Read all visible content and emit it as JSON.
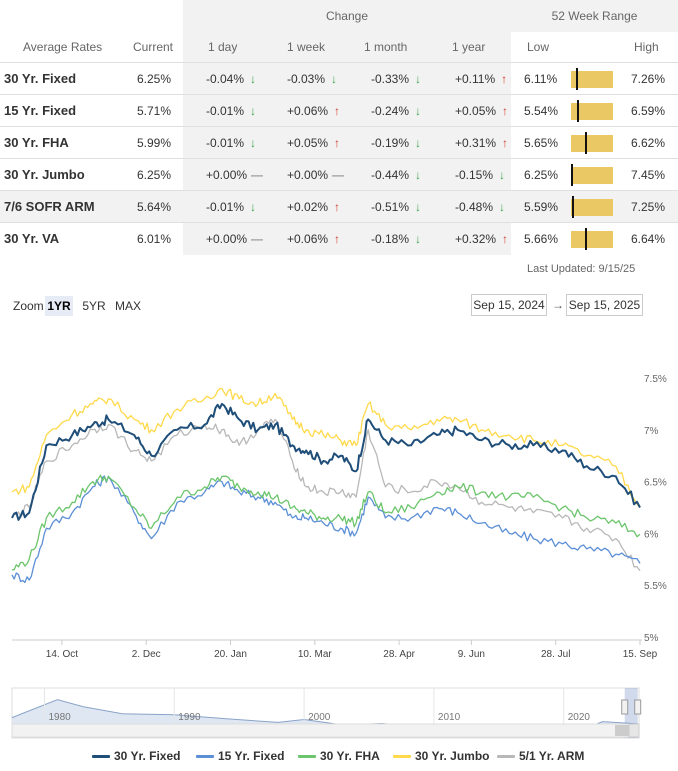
{
  "table": {
    "group_headers": {
      "change": "Change",
      "range": "52 Week Range"
    },
    "columns": {
      "name": "Average Rates",
      "current": "Current",
      "d1": "1 day",
      "w1": "1 week",
      "m1": "1 month",
      "y1": "1 year",
      "low": "Low",
      "high": "High"
    },
    "rows": [
      {
        "name": "30 Yr. Fixed",
        "current": "6.25%",
        "d1": "-0.04%",
        "d1_dir": "down",
        "w1": "-0.03%",
        "w1_dir": "down",
        "m1": "-0.33%",
        "m1_dir": "down",
        "y1": "+0.11%",
        "y1_dir": "up",
        "low": "6.11%",
        "high": "7.26%",
        "range_pos": 0.12
      },
      {
        "name": "15 Yr. Fixed",
        "current": "5.71%",
        "d1": "-0.01%",
        "d1_dir": "down",
        "w1": "+0.06%",
        "w1_dir": "up",
        "m1": "-0.24%",
        "m1_dir": "down",
        "y1": "+0.05%",
        "y1_dir": "up",
        "low": "5.54%",
        "high": "6.59%",
        "range_pos": 0.16
      },
      {
        "name": "30 Yr. FHA",
        "current": "5.99%",
        "d1": "-0.01%",
        "d1_dir": "down",
        "w1": "+0.05%",
        "w1_dir": "up",
        "m1": "-0.19%",
        "m1_dir": "down",
        "y1": "+0.31%",
        "y1_dir": "up",
        "low": "5.65%",
        "high": "6.62%",
        "range_pos": 0.35
      },
      {
        "name": "30 Yr. Jumbo",
        "current": "6.25%",
        "d1": "+0.00%",
        "d1_dir": "flat",
        "w1": "+0.00%",
        "w1_dir": "flat",
        "m1": "-0.44%",
        "m1_dir": "down",
        "y1": "-0.15%",
        "y1_dir": "down",
        "low": "6.25%",
        "high": "7.45%",
        "range_pos": 0.0
      },
      {
        "name": "7/6 SOFR ARM",
        "current": "5.64%",
        "d1": "-0.01%",
        "d1_dir": "down",
        "w1": "+0.02%",
        "w1_dir": "up",
        "m1": "-0.51%",
        "m1_dir": "down",
        "y1": "-0.48%",
        "y1_dir": "down",
        "low": "5.59%",
        "high": "7.25%",
        "range_pos": 0.03,
        "highlight": true
      },
      {
        "name": "30 Yr. VA",
        "current": "6.01%",
        "d1": "+0.00%",
        "d1_dir": "flat",
        "w1": "+0.06%",
        "w1_dir": "up",
        "m1": "-0.18%",
        "m1_dir": "down",
        "y1": "+0.32%",
        "y1_dir": "up",
        "low": "5.66%",
        "high": "6.64%",
        "range_pos": 0.36
      }
    ],
    "last_updated": "Last Updated: 9/15/25"
  },
  "controls": {
    "zoom_label": "Zoom",
    "zoom_buttons": [
      "1YR",
      "5YR",
      "MAX"
    ],
    "active_zoom": "1YR",
    "date_from": "Sep 15, 2024",
    "date_arrow": "→",
    "date_to": "Sep 15, 2025"
  },
  "icons": {
    "down": "arrow-down-icon",
    "up": "arrow-up-icon",
    "flat": "dash-icon"
  },
  "colors": {
    "down": "#3aa648",
    "up": "#d43b2e",
    "range_bar": "#eac864"
  },
  "chart_data": {
    "type": "line",
    "y_tick_labels": [
      "5%",
      "5.5%",
      "6%",
      "6.5%",
      "7%",
      "7.5%"
    ],
    "ylim": [
      5.0,
      7.5
    ],
    "x_tick_labels": [
      "14. Oct",
      "2. Dec",
      "20. Jan",
      "10. Mar",
      "28. Apr",
      "9. Jun",
      "28. Jul",
      "15. Sep"
    ],
    "x_tick_dates": [
      "2024-10-14",
      "2024-12-02",
      "2025-01-20",
      "2025-03-10",
      "2025-04-28",
      "2025-06-09",
      "2025-07-28",
      "2025-09-15"
    ],
    "x_range": [
      "2024-09-15",
      "2025-09-15"
    ],
    "grid": false,
    "legend_position": "bottom",
    "series": [
      {
        "name": "30 Yr. Fixed",
        "color": "#1f4e79",
        "points": [
          [
            "2024-09-15",
            6.15
          ],
          [
            "2024-09-25",
            6.2
          ],
          [
            "2024-10-05",
            6.85
          ],
          [
            "2024-10-20",
            6.95
          ],
          [
            "2024-11-01",
            7.05
          ],
          [
            "2024-11-10",
            7.1
          ],
          [
            "2024-11-25",
            6.95
          ],
          [
            "2024-12-05",
            6.75
          ],
          [
            "2024-12-20",
            7.0
          ],
          [
            "2025-01-05",
            7.05
          ],
          [
            "2025-01-15",
            7.25
          ],
          [
            "2025-01-25",
            7.1
          ],
          [
            "2025-02-05",
            7.0
          ],
          [
            "2025-02-15",
            7.05
          ],
          [
            "2025-02-25",
            6.85
          ],
          [
            "2025-03-05",
            6.8
          ],
          [
            "2025-03-15",
            6.7
          ],
          [
            "2025-03-25",
            6.75
          ],
          [
            "2025-04-03",
            6.6
          ],
          [
            "2025-04-10",
            7.1
          ],
          [
            "2025-04-20",
            6.9
          ],
          [
            "2025-05-05",
            6.85
          ],
          [
            "2025-05-20",
            6.95
          ],
          [
            "2025-06-01",
            7.0
          ],
          [
            "2025-06-15",
            6.9
          ],
          [
            "2025-07-01",
            6.85
          ],
          [
            "2025-07-15",
            6.85
          ],
          [
            "2025-08-01",
            6.8
          ],
          [
            "2025-08-15",
            6.65
          ],
          [
            "2025-09-01",
            6.55
          ],
          [
            "2025-09-15",
            6.25
          ]
        ]
      },
      {
        "name": "15 Yr. Fixed",
        "color": "#5b8fd6",
        "points": [
          [
            "2024-09-15",
            5.6
          ],
          [
            "2024-09-25",
            5.55
          ],
          [
            "2024-10-05",
            6.05
          ],
          [
            "2024-10-20",
            6.2
          ],
          [
            "2024-11-01",
            6.45
          ],
          [
            "2024-11-10",
            6.55
          ],
          [
            "2024-11-25",
            6.2
          ],
          [
            "2024-12-05",
            5.95
          ],
          [
            "2024-12-20",
            6.3
          ],
          [
            "2025-01-05",
            6.4
          ],
          [
            "2025-01-15",
            6.5
          ],
          [
            "2025-01-25",
            6.4
          ],
          [
            "2025-02-05",
            6.35
          ],
          [
            "2025-02-15",
            6.3
          ],
          [
            "2025-02-25",
            6.15
          ],
          [
            "2025-03-05",
            6.15
          ],
          [
            "2025-03-15",
            6.1
          ],
          [
            "2025-03-25",
            6.05
          ],
          [
            "2025-04-03",
            6.0
          ],
          [
            "2025-04-10",
            6.35
          ],
          [
            "2025-04-20",
            6.15
          ],
          [
            "2025-05-05",
            6.15
          ],
          [
            "2025-05-20",
            6.25
          ],
          [
            "2025-06-01",
            6.2
          ],
          [
            "2025-06-15",
            6.1
          ],
          [
            "2025-07-01",
            6.0
          ],
          [
            "2025-07-15",
            5.95
          ],
          [
            "2025-08-01",
            5.9
          ],
          [
            "2025-08-15",
            5.85
          ],
          [
            "2025-09-01",
            5.8
          ],
          [
            "2025-09-15",
            5.71
          ]
        ]
      },
      {
        "name": "30 Yr. FHA",
        "color": "#6cc56c",
        "points": [
          [
            "2024-09-15",
            5.65
          ],
          [
            "2024-09-25",
            5.75
          ],
          [
            "2024-10-05",
            6.15
          ],
          [
            "2024-10-20",
            6.3
          ],
          [
            "2024-11-01",
            6.5
          ],
          [
            "2024-11-10",
            6.55
          ],
          [
            "2024-11-25",
            6.25
          ],
          [
            "2024-12-05",
            6.05
          ],
          [
            "2024-12-20",
            6.35
          ],
          [
            "2025-01-05",
            6.45
          ],
          [
            "2025-01-15",
            6.55
          ],
          [
            "2025-01-25",
            6.45
          ],
          [
            "2025-02-05",
            6.4
          ],
          [
            "2025-02-15",
            6.35
          ],
          [
            "2025-02-25",
            6.25
          ],
          [
            "2025-03-05",
            6.2
          ],
          [
            "2025-03-15",
            6.15
          ],
          [
            "2025-03-25",
            6.15
          ],
          [
            "2025-04-03",
            6.1
          ],
          [
            "2025-04-10",
            6.4
          ],
          [
            "2025-04-20",
            6.2
          ],
          [
            "2025-05-05",
            6.25
          ],
          [
            "2025-05-20",
            6.4
          ],
          [
            "2025-06-01",
            6.45
          ],
          [
            "2025-06-15",
            6.4
          ],
          [
            "2025-07-01",
            6.35
          ],
          [
            "2025-07-15",
            6.35
          ],
          [
            "2025-08-01",
            6.25
          ],
          [
            "2025-08-15",
            6.15
          ],
          [
            "2025-09-01",
            6.1
          ],
          [
            "2025-09-15",
            5.99
          ]
        ]
      },
      {
        "name": "30 Yr. Jumbo",
        "color": "#ffd94a",
        "points": [
          [
            "2024-09-15",
            6.4
          ],
          [
            "2024-09-25",
            6.45
          ],
          [
            "2024-10-05",
            6.95
          ],
          [
            "2024-10-20",
            7.15
          ],
          [
            "2024-11-01",
            7.25
          ],
          [
            "2024-11-10",
            7.3
          ],
          [
            "2024-11-25",
            7.1
          ],
          [
            "2024-12-05",
            7.0
          ],
          [
            "2024-12-20",
            7.2
          ],
          [
            "2025-01-05",
            7.3
          ],
          [
            "2025-01-15",
            7.4
          ],
          [
            "2025-01-25",
            7.3
          ],
          [
            "2025-02-05",
            7.25
          ],
          [
            "2025-02-15",
            7.35
          ],
          [
            "2025-02-25",
            7.1
          ],
          [
            "2025-03-05",
            7.0
          ],
          [
            "2025-03-15",
            6.95
          ],
          [
            "2025-03-25",
            6.9
          ],
          [
            "2025-04-03",
            6.85
          ],
          [
            "2025-04-10",
            7.25
          ],
          [
            "2025-04-20",
            7.05
          ],
          [
            "2025-05-05",
            7.0
          ],
          [
            "2025-05-20",
            7.1
          ],
          [
            "2025-06-01",
            7.1
          ],
          [
            "2025-06-15",
            7.0
          ],
          [
            "2025-07-01",
            6.95
          ],
          [
            "2025-07-15",
            6.9
          ],
          [
            "2025-08-01",
            6.85
          ],
          [
            "2025-08-15",
            6.75
          ],
          [
            "2025-09-01",
            6.65
          ],
          [
            "2025-09-15",
            6.25
          ]
        ]
      },
      {
        "name": "5/1 Yr. ARM",
        "color": "#b8b8b8",
        "points": [
          [
            "2024-09-15",
            6.15
          ],
          [
            "2024-09-25",
            6.25
          ],
          [
            "2024-10-05",
            6.7
          ],
          [
            "2024-10-20",
            6.85
          ],
          [
            "2024-11-01",
            7.0
          ],
          [
            "2024-11-10",
            7.05
          ],
          [
            "2024-11-25",
            6.8
          ],
          [
            "2024-12-05",
            6.7
          ],
          [
            "2024-12-20",
            6.95
          ],
          [
            "2025-01-05",
            7.05
          ],
          [
            "2025-01-15",
            7.0
          ],
          [
            "2025-01-25",
            6.85
          ],
          [
            "2025-02-05",
            7.0
          ],
          [
            "2025-02-15",
            7.1
          ],
          [
            "2025-02-25",
            6.7
          ],
          [
            "2025-03-05",
            6.45
          ],
          [
            "2025-03-15",
            6.4
          ],
          [
            "2025-03-25",
            6.4
          ],
          [
            "2025-04-03",
            6.35
          ],
          [
            "2025-04-10",
            7.0
          ],
          [
            "2025-04-20",
            6.45
          ],
          [
            "2025-05-05",
            6.4
          ],
          [
            "2025-05-20",
            6.5
          ],
          [
            "2025-06-01",
            6.45
          ],
          [
            "2025-06-15",
            6.3
          ],
          [
            "2025-07-01",
            6.25
          ],
          [
            "2025-07-15",
            6.2
          ],
          [
            "2025-08-01",
            6.15
          ],
          [
            "2025-08-15",
            6.05
          ],
          [
            "2025-09-01",
            5.95
          ],
          [
            "2025-09-15",
            5.64
          ]
        ]
      }
    ],
    "navigator": {
      "x_tick_labels": [
        "1980",
        "1990",
        "2000",
        "2010",
        "2020"
      ],
      "x_tick_years": [
        1980,
        1990,
        2000,
        2010,
        2020
      ],
      "x_range": [
        1977.5,
        2025.8
      ],
      "selected_range": [
        2024.7,
        2025.7
      ],
      "points": [
        [
          1977.5,
          8.9
        ],
        [
          1981,
          16.5
        ],
        [
          1983,
          13.5
        ],
        [
          1986,
          10.5
        ],
        [
          1990,
          10.1
        ],
        [
          1994,
          8.4
        ],
        [
          1998,
          6.9
        ],
        [
          2000,
          8.1
        ],
        [
          2003,
          5.8
        ],
        [
          2006,
          6.4
        ],
        [
          2009,
          5.0
        ],
        [
          2012,
          3.7
        ],
        [
          2016,
          3.6
        ],
        [
          2019,
          3.9
        ],
        [
          2021,
          3.0
        ],
        [
          2023,
          7.2
        ],
        [
          2025.7,
          6.3
        ]
      ]
    }
  },
  "legend": {
    "items": [
      {
        "label": "30 Yr. Fixed",
        "color": "#1f4e79"
      },
      {
        "label": "15 Yr. Fixed",
        "color": "#5b8fd6"
      },
      {
        "label": "30 Yr. FHA",
        "color": "#6cc56c"
      },
      {
        "label": "30 Yr. Jumbo",
        "color": "#ffd94a"
      },
      {
        "label": "5/1 Yr. ARM",
        "color": "#b8b8b8"
      }
    ]
  }
}
